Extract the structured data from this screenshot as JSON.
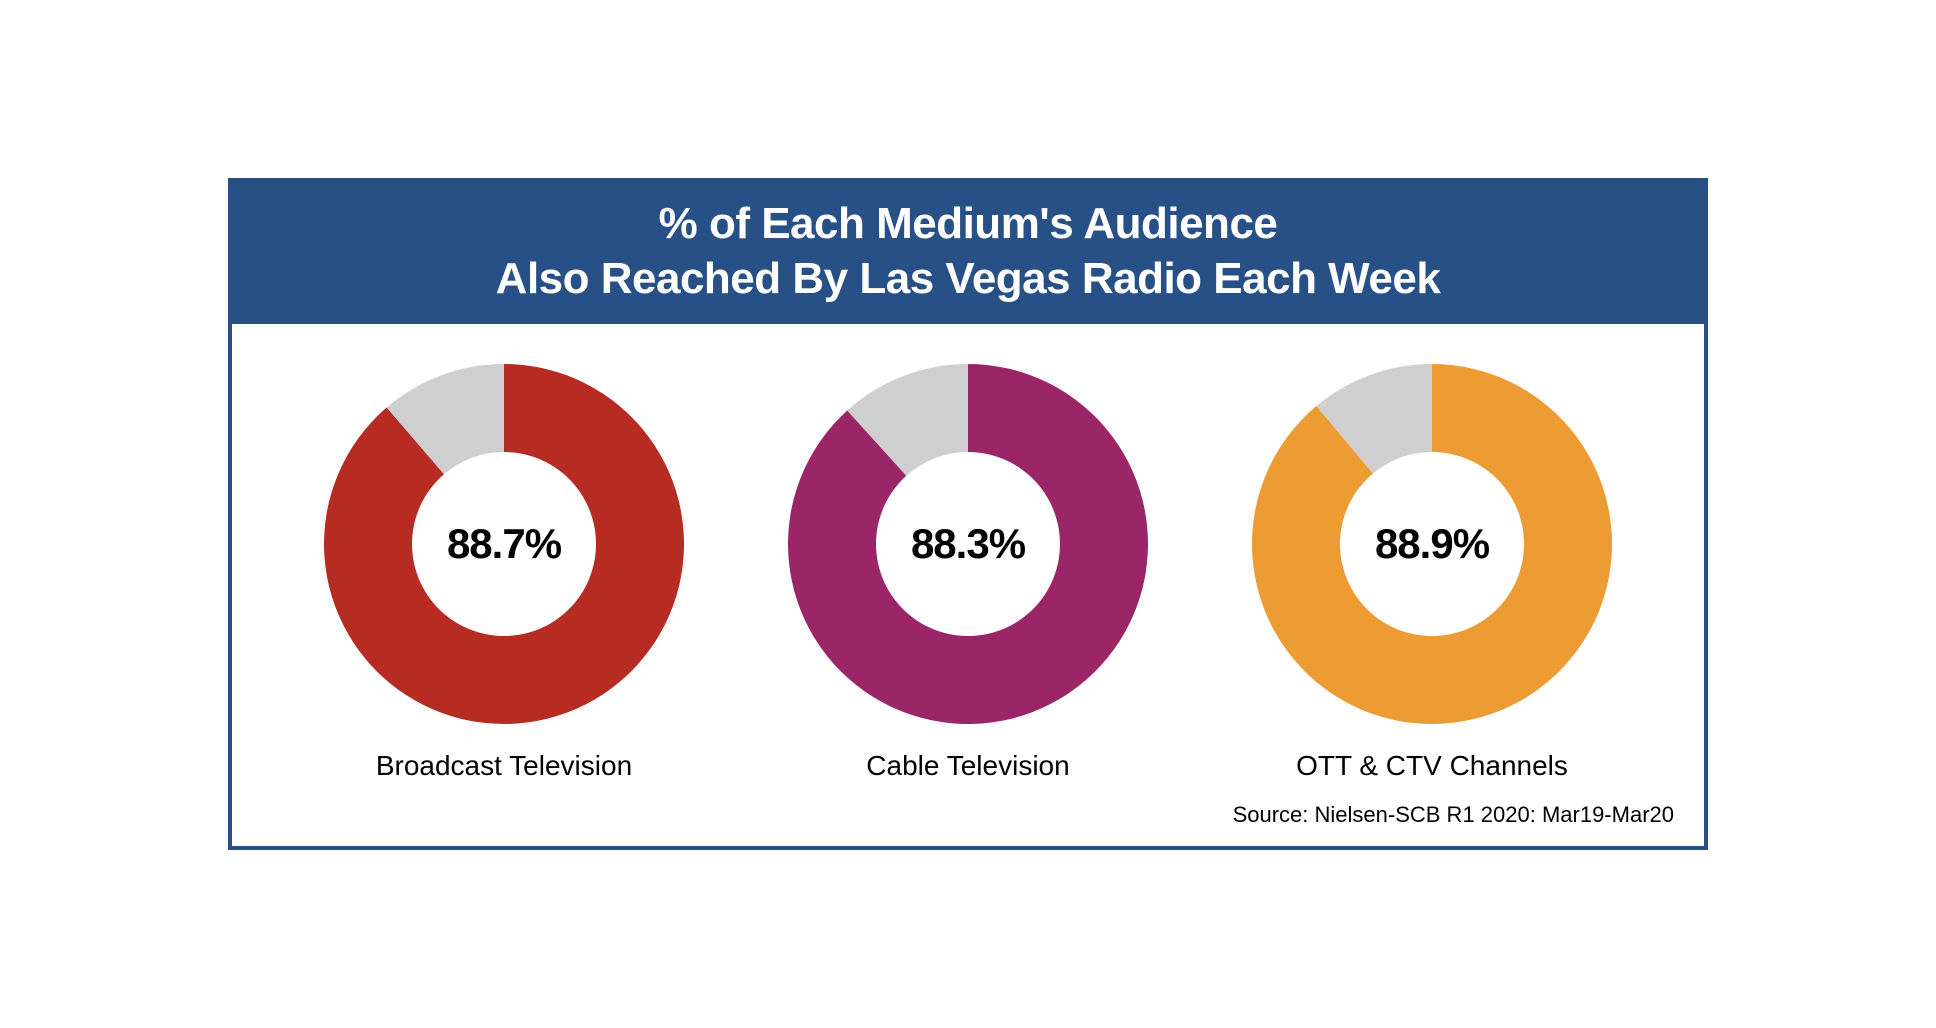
{
  "title_line1": "% of Each Medium's Audience",
  "title_line2": "Also Reached By Las Vegas Radio Each Week",
  "title_bg": "#275186",
  "title_color": "#ffffff",
  "border_color": "#275186",
  "background_color": "#ffffff",
  "remainder_color": "#cfcfcf",
  "source": "Source: Nielsen-SCB R1 2020: Mar19-Mar20",
  "donut": {
    "outer_radius": 180,
    "inner_radius": 92,
    "start_angle_deg": 0,
    "percent_fontsize": 42,
    "caption_fontsize": 28
  },
  "charts": [
    {
      "label": "Broadcast Television",
      "value": 88.7,
      "display": "88.7%",
      "color": "#b62c23"
    },
    {
      "label": "Cable Television",
      "value": 88.3,
      "display": "88.3%",
      "color": "#9a2567"
    },
    {
      "label": "OTT & CTV Channels",
      "value": 88.9,
      "display": "88.9%",
      "color": "#ed9b33"
    }
  ]
}
